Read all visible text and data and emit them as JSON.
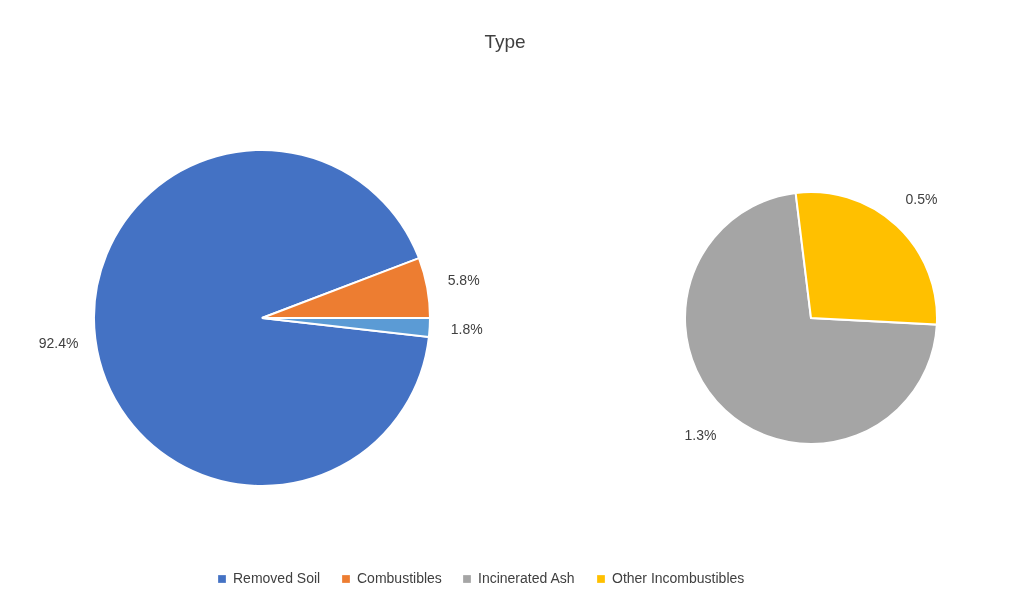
{
  "chart_data": [
    {
      "type": "pie",
      "title": "Type",
      "categories": [
        "Removed Soil",
        "Combustibles",
        null
      ],
      "values": [
        92.4,
        5.8,
        1.8
      ],
      "colors": [
        "#4472c4",
        "#ed7d31",
        "#5b9bd5"
      ],
      "value_labels": [
        "92.4%",
        "5.8%",
        "1.8%"
      ],
      "legend": "bottom"
    },
    {
      "type": "pie",
      "categories": [
        "Incinerated Ash",
        "Other Incombustibles"
      ],
      "values": [
        1.3,
        0.5
      ],
      "colors": [
        "#a5a5a5",
        "#ffc000"
      ],
      "value_labels": [
        "1.3%",
        "0.5%"
      ],
      "legend": "bottom"
    }
  ]
}
